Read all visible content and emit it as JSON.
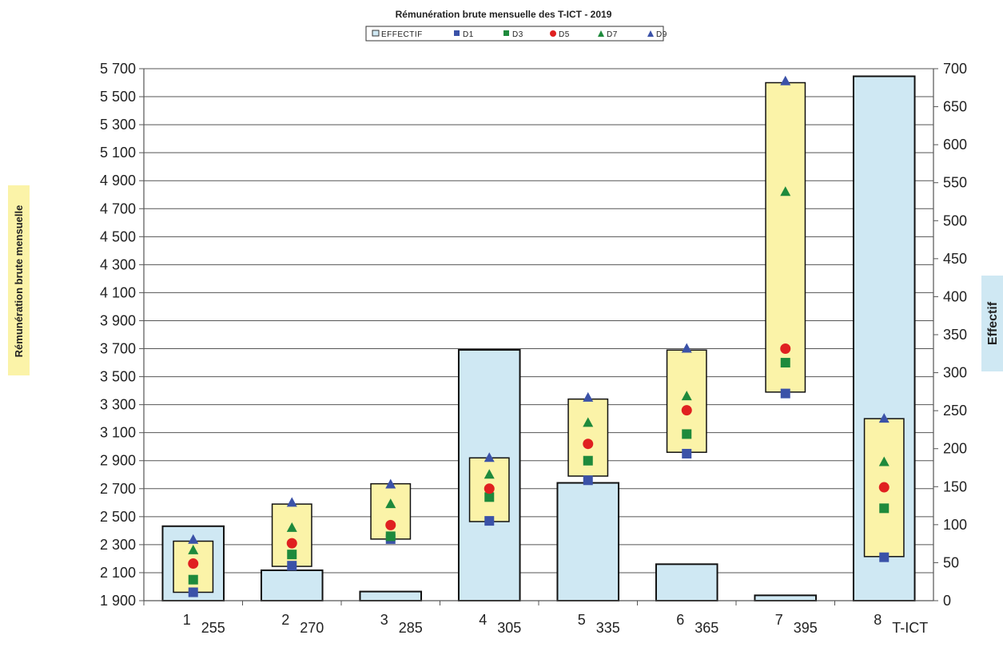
{
  "chart_data": {
    "type": "bar",
    "title": "Rémunération brute mensuelle des T-ICT - 2019",
    "legend": [
      "EFFECTIF",
      "D1",
      "D3",
      "D5",
      "D7",
      "D9"
    ],
    "legend_placement": "top-center",
    "ylabel_left": "Rémunération brute mensuelle",
    "ylabel_right": "Effectif",
    "y_left_ticks": [
      "5 700",
      "5 500",
      "5 300",
      "5 100",
      "4 900",
      "4 700",
      "4 500",
      "4 300",
      "4 100",
      "3 900",
      "3 700",
      "3 500",
      "3 300",
      "3 100",
      "2 900",
      "2 700",
      "2 500",
      "2 300",
      "2 100",
      "1 900"
    ],
    "y_right_ticks": [
      "700",
      "650",
      "600",
      "550",
      "500",
      "450",
      "400",
      "350",
      "300",
      "250",
      "200",
      "150",
      "100",
      "50",
      "0"
    ],
    "ylim_left": [
      1900,
      5700
    ],
    "ylim_right": [
      0,
      700
    ],
    "grid": true,
    "categories": [
      "1",
      "2",
      "3",
      "4",
      "5",
      "6",
      "7",
      "8"
    ],
    "indices": [
      "255",
      "270",
      "285",
      "305",
      "335",
      "365",
      "395",
      "T-ICT"
    ],
    "effectif": [
      98,
      40,
      12,
      330,
      155,
      48,
      7,
      690
    ],
    "range_boxes": [
      {
        "low": 1960,
        "high": 2325
      },
      {
        "low": 2145,
        "high": 2590
      },
      {
        "low": 2340,
        "high": 2735
      },
      {
        "low": 2465,
        "high": 2920
      },
      {
        "low": 2790,
        "high": 3340
      },
      {
        "low": 2960,
        "high": 3690
      },
      {
        "low": 3390,
        "high": 5600
      },
      {
        "low": 2215,
        "high": 3200
      }
    ],
    "series": [
      {
        "name": "D1",
        "marker": "square",
        "color": "#3b52a8",
        "values": [
          1960,
          2150,
          2340,
          2470,
          2760,
          2950,
          3380,
          2210
        ]
      },
      {
        "name": "D3",
        "marker": "square",
        "color": "#1e8a3c",
        "values": [
          2050,
          2230,
          2360,
          2640,
          2900,
          3090,
          3600,
          2560
        ]
      },
      {
        "name": "D5",
        "marker": "circle",
        "color": "#e02020",
        "values": [
          2165,
          2310,
          2440,
          2700,
          3020,
          3260,
          3700,
          2710
        ]
      },
      {
        "name": "D7",
        "marker": "triangle",
        "color": "#1e8a3c",
        "values": [
          2260,
          2420,
          2590,
          2800,
          3170,
          3360,
          4820,
          2890
        ]
      },
      {
        "name": "D9",
        "marker": "triangle",
        "color": "#3b52a8",
        "values": [
          2335,
          2600,
          2730,
          2920,
          3350,
          3700,
          5610,
          3200
        ]
      }
    ],
    "colors": {
      "bar_fill": "#cfe8f3",
      "box_fill": "#fbf3a8",
      "axis_label_left_bg": "#fbf3a8",
      "axis_label_right_bg": "#cfe8f3"
    }
  }
}
